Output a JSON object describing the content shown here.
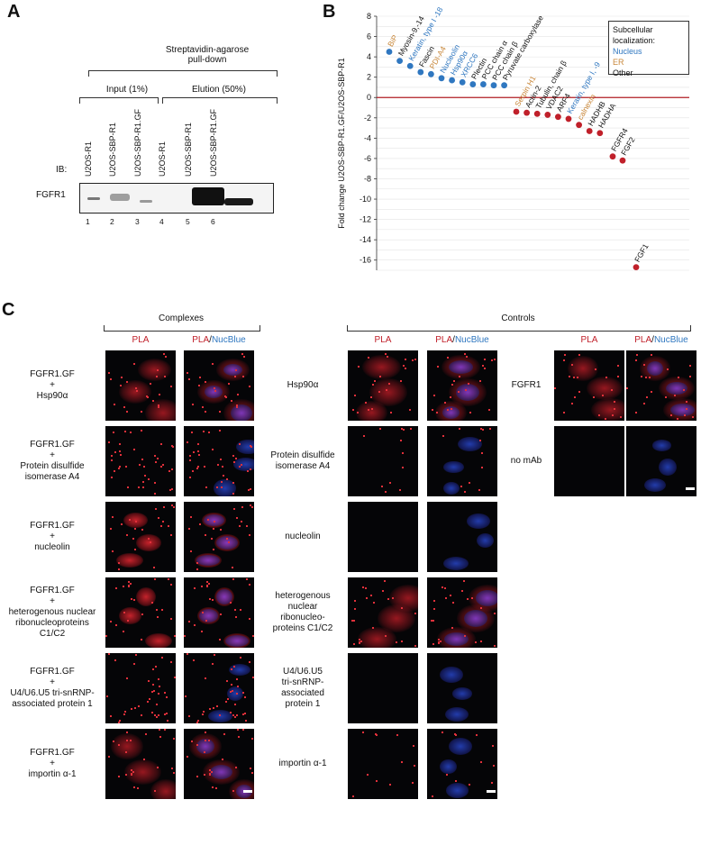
{
  "panelA": {
    "letter": "A",
    "title_line1": "Streptavidin-agarose",
    "title_line2": "pull-down",
    "input_label": "Input (1%)",
    "elution_label": "Elution (50%)",
    "ib_label": "IB:",
    "lanes": [
      "U2OS-R1",
      "U2OS-SBP-R1",
      "U2OS-SBP-R1.GF",
      "U2OS-R1",
      "U2OS-SBP-R1",
      "U2OS-SBP-R1.GF"
    ],
    "lane_numbers": [
      "1",
      "2",
      "3",
      "4",
      "5",
      "6"
    ],
    "blot_label": "FGFR1"
  },
  "panelB": {
    "letter": "B",
    "legend_title_1": "Subcellular",
    "legend_title_2": "localization:",
    "legend_items": [
      {
        "label": "Nucleus",
        "color": "#2f77c0"
      },
      {
        "label": "ER",
        "color": "#c8873a"
      },
      {
        "label": "Other",
        "color": "#111111"
      }
    ]
  },
  "chart_data": {
    "type": "scatter",
    "ylabel": "Fold change U2OS-SBP-R1.GF/U2OS-SBP-R1",
    "ylim": [
      -17,
      8
    ],
    "yticks": [
      8,
      6,
      4,
      2,
      0,
      -2,
      -4,
      -6,
      -8,
      -10,
      -12,
      -14,
      -16
    ],
    "grid": true,
    "legend_position": "top-right",
    "points": [
      {
        "label": "BiP",
        "value": 4.5,
        "color": "#2f77c0",
        "label_color": "#c8873a"
      },
      {
        "label": "Myosin-9,-14",
        "value": 3.6,
        "color": "#2f77c0",
        "label_color": "#111111"
      },
      {
        "label": "Keratin, type I -18",
        "value": 3.1,
        "color": "#2f77c0",
        "label_color": "#2f77c0"
      },
      {
        "label": "Fascin",
        "value": 2.5,
        "color": "#2f77c0",
        "label_color": "#111111"
      },
      {
        "label": "PDI-A4",
        "value": 2.3,
        "color": "#2f77c0",
        "label_color": "#c8873a"
      },
      {
        "label": "Nucleolin",
        "value": 1.9,
        "color": "#2f77c0",
        "label_color": "#2f77c0"
      },
      {
        "label": "Hsp90α",
        "value": 1.7,
        "color": "#2f77c0",
        "label_color": "#2f77c0"
      },
      {
        "label": "XRCC6",
        "value": 1.5,
        "color": "#2f77c0",
        "label_color": "#2f77c0"
      },
      {
        "label": "Plectin",
        "value": 1.3,
        "color": "#2f77c0",
        "label_color": "#111111"
      },
      {
        "label": "PCC chain α",
        "value": 1.3,
        "color": "#2f77c0",
        "label_color": "#111111"
      },
      {
        "label": "PCC chain β",
        "value": 1.2,
        "color": "#2f77c0",
        "label_color": "#111111"
      },
      {
        "label": "Pyruvate carboxylase",
        "value": 1.2,
        "color": "#2f77c0",
        "label_color": "#111111"
      },
      {
        "label": "Serpin H1",
        "value": -1.4,
        "color": "#c0202a",
        "label_color": "#c8873a"
      },
      {
        "label": "Actin-2",
        "value": -1.5,
        "color": "#c0202a",
        "label_color": "#111111"
      },
      {
        "label": "Tubulin, chain β",
        "value": -1.6,
        "color": "#c0202a",
        "label_color": "#111111"
      },
      {
        "label": "VDAC2",
        "value": -1.7,
        "color": "#c0202a",
        "label_color": "#111111"
      },
      {
        "label": "ARF4",
        "value": -1.9,
        "color": "#c0202a",
        "label_color": "#111111"
      },
      {
        "label": "Keratin, type I, -9",
        "value": -2.1,
        "color": "#c0202a",
        "label_color": "#2f77c0"
      },
      {
        "label": "calnexin",
        "value": -2.7,
        "color": "#c0202a",
        "label_color": "#c8873a"
      },
      {
        "label": "HADHB",
        "value": -3.3,
        "color": "#c0202a",
        "label_color": "#111111"
      },
      {
        "label": "HADHA",
        "value": -3.5,
        "color": "#c0202a",
        "label_color": "#111111"
      },
      {
        "label": "FGFR4",
        "value": -5.8,
        "color": "#c0202a",
        "label_color": "#111111"
      },
      {
        "label": "FGF2",
        "value": -6.2,
        "color": "#c0202a",
        "label_color": "#111111"
      },
      {
        "label": "FGF1",
        "value": -16.7,
        "color": "#c0202a",
        "label_color": "#111111"
      }
    ]
  },
  "panelC": {
    "letter": "C",
    "complexes_title": "Complexes",
    "controls_title": "Controls",
    "pla": "PLA",
    "pla_part": "PLA",
    "slash": "/",
    "nucblue": "NucBlue",
    "complex_rows": [
      [
        "FGFR1.GF",
        "+",
        "Hsp90α"
      ],
      [
        "FGFR1.GF",
        "+",
        "Protein disulfide",
        "isomerase A4"
      ],
      [
        "FGFR1.GF",
        "+",
        "nucleolin"
      ],
      [
        "FGFR1.GF",
        "+",
        "heterogenous nuclear",
        "ribonucleoproteins",
        "C1/C2"
      ],
      [
        "FGFR1.GF",
        "+",
        "U4/U6.U5 tri-snRNP-",
        "associated protein 1"
      ],
      [
        "FGFR1.GF",
        "+",
        "importin α-1"
      ]
    ],
    "control_rows": [
      [
        "Hsp90α"
      ],
      [
        "Protein disulfide",
        "isomerase A4"
      ],
      [
        "nucleolin"
      ],
      [
        "heterogenous",
        "nuclear",
        "ribonucleo-",
        "proteins C1/C2"
      ],
      [
        "U4/U6.U5",
        "tri-snRNP-",
        "associated",
        "protein 1"
      ],
      [
        "importin α-1"
      ]
    ],
    "extra_rows": [
      [
        "FGFR1"
      ],
      [
        "no mAb"
      ]
    ]
  }
}
